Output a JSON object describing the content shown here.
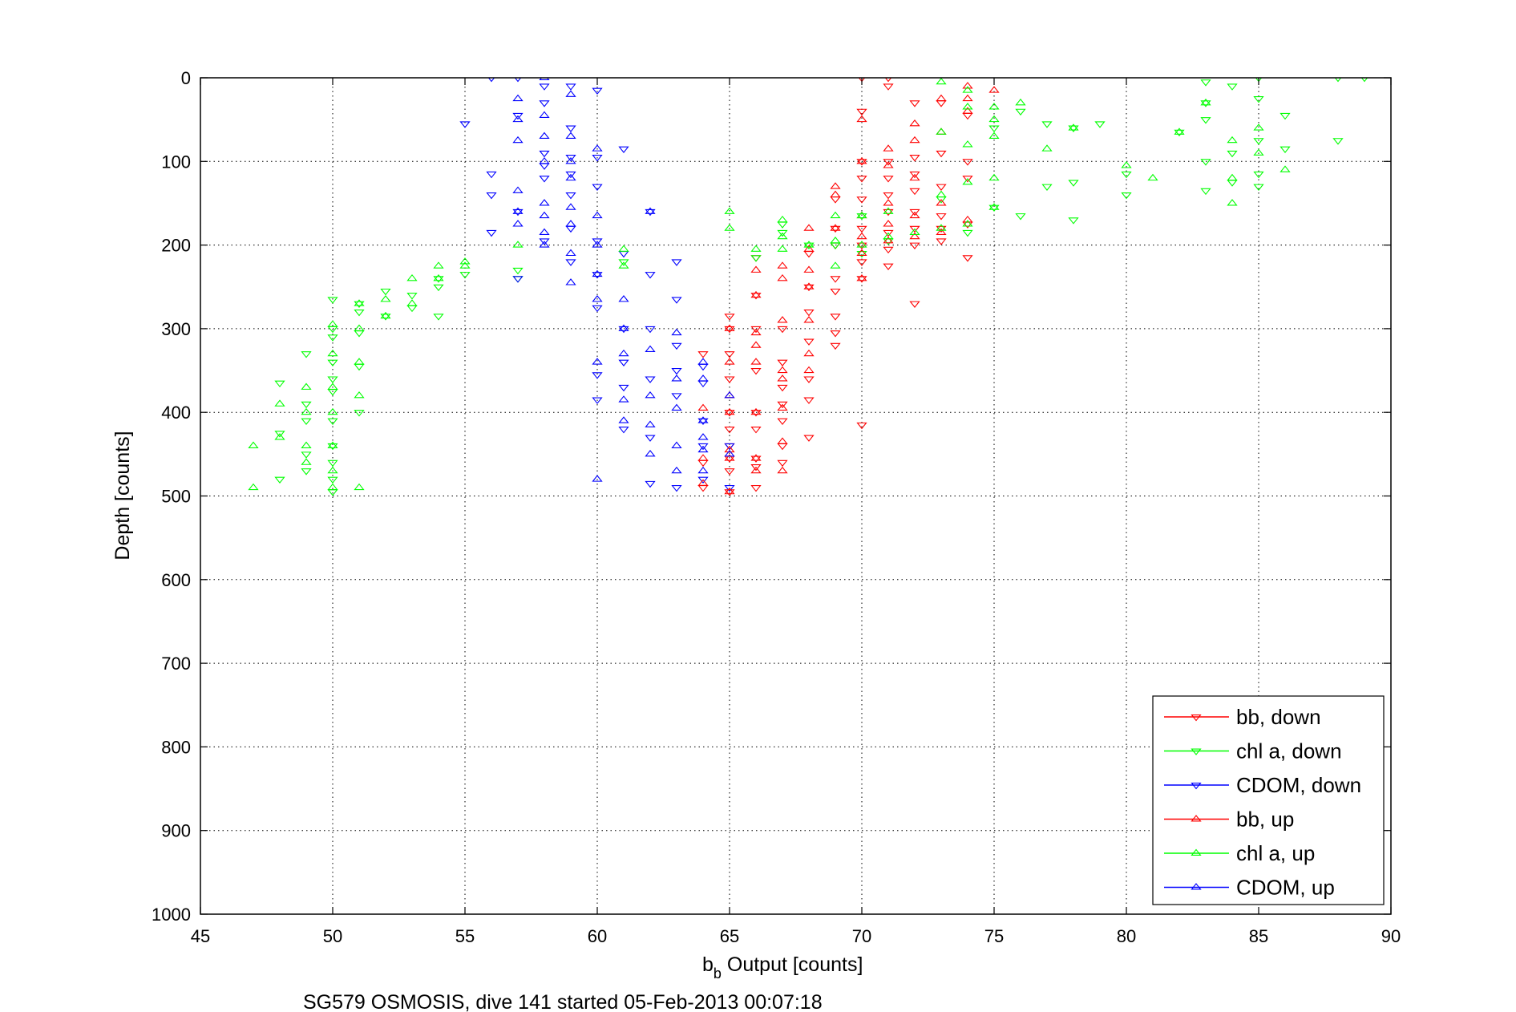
{
  "caption": "SG579 OSMOSIS, dive 141 started 05-Feb-2013 00:07:18",
  "chart_data": {
    "type": "scatter",
    "xlabel_main": "b",
    "xlabel_sub": "b",
    "xlabel_rest": " Output [counts]",
    "ylabel": "Depth [counts]",
    "xlim": [
      45,
      90
    ],
    "ylim": [
      0,
      1000
    ],
    "y_reversed": true,
    "grid": true,
    "legend_position": "bottom-right",
    "xticks": [
      "45",
      "50",
      "55",
      "60",
      "65",
      "70",
      "75",
      "80",
      "85",
      "90"
    ],
    "yticks": [
      "0",
      "100",
      "200",
      "300",
      "400",
      "500",
      "600",
      "700",
      "800",
      "900",
      "1000"
    ],
    "series": [
      {
        "name": "bb, down",
        "color": "#ff0000",
        "marker": "triangle-down",
        "x": [
          65,
          65,
          65,
          65,
          65,
          65,
          65,
          65,
          65,
          65,
          66,
          66,
          66,
          66,
          66,
          66,
          66,
          66,
          66,
          67,
          67,
          67,
          67,
          67,
          67,
          67,
          68,
          68,
          68,
          68,
          68,
          68,
          68,
          69,
          69,
          69,
          69,
          69,
          69,
          69,
          69,
          70,
          70,
          70,
          70,
          70,
          70,
          70,
          70,
          70,
          70,
          71,
          71,
          71,
          71,
          71,
          71,
          71,
          71,
          71,
          72,
          72,
          72,
          72,
          72,
          72,
          72,
          72,
          73,
          73,
          73,
          73,
          73,
          73,
          74,
          74,
          74,
          74,
          74,
          64,
          64,
          64
        ],
        "y": [
          495,
          470,
          455,
          440,
          420,
          400,
          360,
          330,
          300,
          285,
          490,
          465,
          455,
          420,
          400,
          350,
          300,
          260,
          215,
          460,
          440,
          410,
          390,
          370,
          340,
          300,
          430,
          385,
          360,
          315,
          280,
          250,
          210,
          320,
          305,
          285,
          255,
          240,
          200,
          180,
          145,
          415,
          240,
          220,
          200,
          180,
          145,
          120,
          100,
          40,
          0,
          225,
          205,
          185,
          160,
          140,
          120,
          100,
          10,
          0,
          270,
          200,
          180,
          160,
          135,
          115,
          95,
          30,
          195,
          180,
          165,
          130,
          90,
          30,
          215,
          175,
          120,
          100,
          45,
          490,
          460,
          330
        ]
      },
      {
        "name": "chl a, down",
        "color": "#00ff00",
        "marker": "triangle-down",
        "x": [
          48,
          48,
          48,
          49,
          49,
          49,
          49,
          49,
          50,
          50,
          50,
          50,
          50,
          50,
          50,
          50,
          50,
          50,
          50,
          51,
          51,
          51,
          51,
          51,
          52,
          52,
          53,
          53,
          54,
          54,
          54,
          55,
          57,
          57,
          61,
          66,
          67,
          67,
          68,
          69,
          70,
          70,
          71,
          73,
          74,
          75,
          75,
          76,
          76,
          77,
          77,
          78,
          78,
          78,
          79,
          80,
          80,
          82,
          83,
          83,
          83,
          83,
          83,
          84,
          84,
          84,
          85,
          85,
          85,
          85,
          85,
          86,
          86,
          88,
          88,
          89
        ],
        "y": [
          480,
          425,
          365,
          470,
          450,
          410,
          390,
          330,
          495,
          480,
          460,
          440,
          410,
          375,
          360,
          340,
          310,
          300,
          265,
          400,
          345,
          305,
          280,
          270,
          285,
          255,
          275,
          260,
          285,
          250,
          240,
          235,
          240,
          230,
          220,
          215,
          185,
          175,
          200,
          200,
          210,
          165,
          195,
          145,
          185,
          155,
          60,
          165,
          40,
          130,
          55,
          170,
          125,
          60,
          55,
          140,
          115,
          65,
          135,
          100,
          50,
          30,
          5,
          125,
          90,
          10,
          130,
          115,
          75,
          25,
          0,
          85,
          45,
          75,
          0,
          0
        ]
      },
      {
        "name": "CDOM, down",
        "color": "#0000ff",
        "marker": "triangle-down",
        "x": [
          55,
          56,
          56,
          56,
          56,
          57,
          57,
          57,
          57,
          58,
          58,
          58,
          58,
          58,
          58,
          59,
          59,
          59,
          59,
          59,
          59,
          59,
          60,
          60,
          60,
          60,
          60,
          60,
          60,
          60,
          61,
          61,
          61,
          61,
          61,
          61,
          62,
          62,
          62,
          62,
          62,
          62,
          63,
          63,
          63,
          63,
          63,
          63,
          64,
          64,
          64,
          64,
          64,
          65,
          65
        ],
        "y": [
          55,
          185,
          140,
          115,
          0,
          240,
          160,
          45,
          0,
          195,
          120,
          105,
          90,
          30,
          10,
          220,
          180,
          140,
          115,
          95,
          60,
          10,
          385,
          355,
          275,
          235,
          195,
          130,
          95,
          15,
          420,
          370,
          340,
          300,
          210,
          85,
          485,
          430,
          360,
          300,
          235,
          160,
          490,
          380,
          350,
          320,
          265,
          220,
          480,
          440,
          410,
          365,
          345,
          490,
          440
        ]
      },
      {
        "name": "bb, up",
        "color": "#ff0000",
        "marker": "triangle-up",
        "x": [
          64,
          64,
          64,
          65,
          65,
          65,
          65,
          65,
          65,
          65,
          66,
          66,
          66,
          66,
          66,
          66,
          66,
          66,
          67,
          67,
          67,
          67,
          67,
          67,
          67,
          67,
          68,
          68,
          68,
          68,
          68,
          68,
          68,
          69,
          69,
          69,
          70,
          70,
          70,
          70,
          70,
          70,
          71,
          71,
          71,
          71,
          71,
          72,
          72,
          72,
          72,
          72,
          73,
          73,
          73,
          73,
          74,
          74,
          74,
          74,
          75
        ],
        "y": [
          485,
          455,
          395,
          495,
          455,
          445,
          400,
          380,
          340,
          300,
          470,
          455,
          400,
          340,
          320,
          305,
          260,
          230,
          470,
          435,
          395,
          360,
          350,
          290,
          240,
          225,
          350,
          330,
          290,
          250,
          230,
          205,
          180,
          180,
          140,
          130,
          240,
          210,
          190,
          165,
          100,
          50,
          195,
          175,
          150,
          105,
          85,
          190,
          165,
          120,
          75,
          55,
          185,
          150,
          65,
          25,
          170,
          40,
          25,
          10,
          15
        ]
      },
      {
        "name": "chl a, up",
        "color": "#00ff00",
        "marker": "triangle-up",
        "x": [
          47,
          47,
          48,
          48,
          49,
          49,
          49,
          49,
          50,
          50,
          50,
          50,
          50,
          50,
          50,
          51,
          51,
          51,
          51,
          51,
          52,
          52,
          53,
          53,
          54,
          54,
          55,
          55,
          57,
          61,
          61,
          65,
          65,
          66,
          67,
          67,
          67,
          68,
          69,
          69,
          69,
          70,
          70,
          71,
          71,
          72,
          73,
          73,
          73,
          73,
          74,
          74,
          74,
          74,
          74,
          75,
          75,
          75,
          75,
          75,
          76,
          77,
          78,
          80,
          81,
          82,
          83,
          84,
          84,
          84,
          85,
          85,
          86
        ],
        "y": [
          490,
          440,
          430,
          390,
          460,
          440,
          400,
          370,
          490,
          470,
          440,
          400,
          370,
          330,
          295,
          490,
          380,
          340,
          300,
          270,
          285,
          265,
          270,
          240,
          240,
          225,
          225,
          220,
          200,
          225,
          205,
          180,
          160,
          205,
          205,
          190,
          170,
          200,
          225,
          195,
          165,
          200,
          165,
          190,
          160,
          185,
          180,
          140,
          65,
          5,
          175,
          125,
          80,
          35,
          15,
          155,
          120,
          70,
          50,
          35,
          30,
          85,
          60,
          105,
          120,
          65,
          30,
          150,
          120,
          75,
          90,
          60,
          110
        ]
      },
      {
        "name": "CDOM, up",
        "color": "#0000ff",
        "marker": "triangle-up",
        "x": [
          57,
          57,
          57,
          57,
          57,
          57,
          58,
          58,
          58,
          58,
          58,
          58,
          58,
          58,
          59,
          59,
          59,
          59,
          59,
          59,
          59,
          59,
          60,
          60,
          60,
          60,
          60,
          60,
          60,
          61,
          61,
          61,
          61,
          61,
          62,
          62,
          62,
          62,
          62,
          63,
          63,
          63,
          63,
          63,
          64,
          64,
          64,
          64,
          64,
          64,
          65,
          65
        ],
        "y": [
          175,
          160,
          135,
          75,
          50,
          25,
          200,
          185,
          165,
          150,
          100,
          70,
          45,
          0,
          245,
          210,
          175,
          155,
          120,
          100,
          70,
          20,
          480,
          340,
          265,
          235,
          200,
          165,
          85,
          410,
          385,
          330,
          300,
          265,
          450,
          415,
          380,
          325,
          160,
          470,
          440,
          395,
          360,
          305,
          470,
          445,
          430,
          410,
          360,
          340,
          450,
          380
        ]
      }
    ]
  }
}
